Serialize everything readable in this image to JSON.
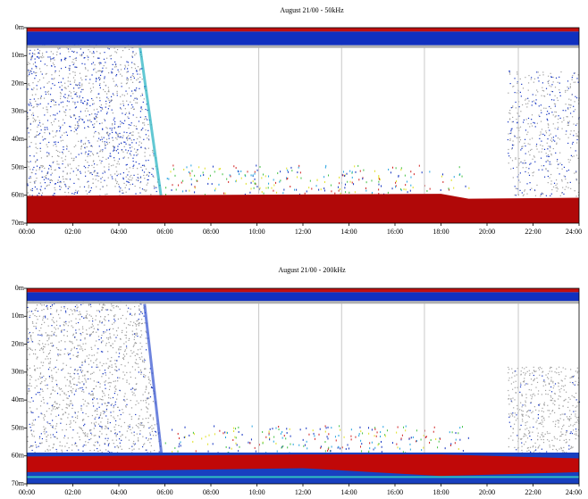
{
  "chart_data": [
    {
      "type": "echogram",
      "title": "August 21/00 - 50kHz",
      "y_inverted": true,
      "xlim": [
        0,
        24
      ],
      "xticks": [
        {
          "value": 0,
          "label": "00:00"
        },
        {
          "value": 2,
          "label": "02:00"
        },
        {
          "value": 4,
          "label": "04:00"
        },
        {
          "value": 6,
          "label": "06:00"
        },
        {
          "value": 8,
          "label": "08:00"
        },
        {
          "value": 10,
          "label": "10:00"
        },
        {
          "value": 12,
          "label": "12:00"
        },
        {
          "value": 14,
          "label": "14:00"
        },
        {
          "value": 16,
          "label": "16:00"
        },
        {
          "value": 18,
          "label": "18:00"
        },
        {
          "value": 20,
          "label": "20:00"
        },
        {
          "value": 22,
          "label": "22:00"
        },
        {
          "value": 24,
          "label": "24:00"
        }
      ],
      "ylim": [
        0,
        70
      ],
      "yticks": [
        {
          "value": 0,
          "label": "0m"
        },
        {
          "value": 10,
          "label": "10m"
        },
        {
          "value": 20,
          "label": "20m"
        },
        {
          "value": 30,
          "label": "30m"
        },
        {
          "value": 40,
          "label": "40m"
        },
        {
          "value": 50,
          "label": "50m"
        },
        {
          "value": 60,
          "label": "60m"
        },
        {
          "value": 70,
          "label": "70m"
        }
      ]
    },
    {
      "type": "echogram",
      "title": "August 21/00 - 200kHz",
      "y_inverted": true,
      "xlim": [
        0,
        24
      ],
      "xticks": [
        {
          "value": 0,
          "label": "00:00"
        },
        {
          "value": 2,
          "label": "02:00"
        },
        {
          "value": 4,
          "label": "04:00"
        },
        {
          "value": 6,
          "label": "06:00"
        },
        {
          "value": 8,
          "label": "08:00"
        },
        {
          "value": 10,
          "label": "10:00"
        },
        {
          "value": 12,
          "label": "12:00"
        },
        {
          "value": 14,
          "label": "14:00"
        },
        {
          "value": 16,
          "label": "16:00"
        },
        {
          "value": 18,
          "label": "18:00"
        },
        {
          "value": 20,
          "label": "20:00"
        },
        {
          "value": 22,
          "label": "22:00"
        },
        {
          "value": 24,
          "label": "24:00"
        }
      ],
      "ylim": [
        0,
        70
      ],
      "yticks": [
        {
          "value": 0,
          "label": "0m"
        },
        {
          "value": 10,
          "label": "10m"
        },
        {
          "value": 20,
          "label": "20m"
        },
        {
          "value": 30,
          "label": "30m"
        },
        {
          "value": 40,
          "label": "40m"
        },
        {
          "value": 50,
          "label": "50m"
        },
        {
          "value": 60,
          "label": "60m"
        },
        {
          "value": 70,
          "label": "70m"
        }
      ]
    }
  ]
}
